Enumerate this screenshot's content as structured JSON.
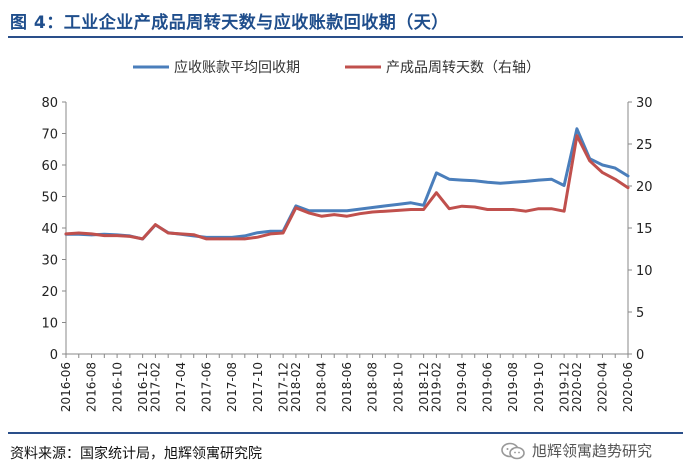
{
  "figure_title": "图 4：工业企业产成品周转天数与应收账款回收期（天）",
  "source": "资料来源：国家统计局，旭辉领寓研究院",
  "watermark": "旭辉领寓趋势研究",
  "watermark_icon": "wechat-icon",
  "colors": {
    "ar": "#4a7ebb",
    "inv": "#c0504d",
    "title": "#1f4e8c",
    "rule": "#2a4f8a"
  },
  "chart_data": {
    "type": "line",
    "title": "",
    "x": [
      "2016-06",
      "2016-07",
      "2016-08",
      "2016-09",
      "2016-10",
      "2016-11",
      "2016-12",
      "2017-02",
      "2017-03",
      "2017-04",
      "2017-05",
      "2017-06",
      "2017-07",
      "2017-08",
      "2017-09",
      "2017-10",
      "2017-11",
      "2017-12",
      "2018-02",
      "2018-03",
      "2018-04",
      "2018-05",
      "2018-06",
      "2018-07",
      "2018-08",
      "2018-09",
      "2018-10",
      "2018-11",
      "2018-12",
      "2019-02",
      "2019-03",
      "2019-04",
      "2019-05",
      "2019-06",
      "2019-07",
      "2019-08",
      "2019-09",
      "2019-10",
      "2019-11",
      "2019-12",
      "2020-02",
      "2020-03",
      "2020-04",
      "2020-05",
      "2020-06"
    ],
    "x_tick_labels": [
      "2016-06",
      "2016-08",
      "2016-10",
      "2016-12",
      "2017-02",
      "2017-04",
      "2017-06",
      "2017-08",
      "2017-10",
      "2017-12",
      "2018-02",
      "2018-04",
      "2018-06",
      "2018-08",
      "2018-10",
      "2018-12",
      "2019-02",
      "2019-04",
      "2019-06",
      "2019-08",
      "2019-10",
      "2019-12",
      "2020-02",
      "2020-04",
      "2020-06"
    ],
    "series": [
      {
        "name": "应收账款平均回收期",
        "axis": "left",
        "color": "#4a7ebb",
        "values": [
          38.0,
          38.0,
          37.8,
          38.0,
          37.8,
          37.5,
          36.5,
          41.0,
          38.5,
          38.0,
          37.5,
          37.0,
          37.0,
          37.0,
          37.5,
          38.5,
          39.0,
          39.0,
          47.0,
          45.5,
          45.5,
          45.5,
          45.5,
          46.0,
          46.5,
          47.0,
          47.5,
          48.0,
          47.2,
          57.5,
          55.5,
          55.2,
          55.0,
          54.5,
          54.2,
          54.5,
          54.8,
          55.2,
          55.5,
          53.5,
          71.5,
          62.0,
          60.0,
          59.0,
          56.5
        ]
      },
      {
        "name": "产成品周转天数（右轴）",
        "axis": "right",
        "color": "#c0504d",
        "values": [
          14.3,
          14.4,
          14.3,
          14.1,
          14.1,
          14.0,
          13.7,
          15.4,
          14.4,
          14.3,
          14.2,
          13.7,
          13.7,
          13.7,
          13.7,
          13.9,
          14.3,
          14.4,
          17.4,
          16.8,
          16.4,
          16.6,
          16.4,
          16.7,
          16.9,
          17.0,
          17.1,
          17.2,
          17.2,
          19.2,
          17.3,
          17.6,
          17.5,
          17.2,
          17.2,
          17.2,
          17.0,
          17.3,
          17.3,
          17.0,
          26.0,
          23.0,
          21.6,
          20.8,
          19.8
        ]
      }
    ],
    "y_left": {
      "range": [
        0,
        80
      ],
      "ticks": [
        "0",
        "10",
        "20",
        "30",
        "40",
        "50",
        "60",
        "70",
        "80"
      ]
    },
    "y_right": {
      "range": [
        0,
        30
      ],
      "ticks": [
        "0",
        "5",
        "10",
        "15",
        "20",
        "25",
        "30"
      ]
    },
    "legend_position": "top",
    "grid": false
  }
}
